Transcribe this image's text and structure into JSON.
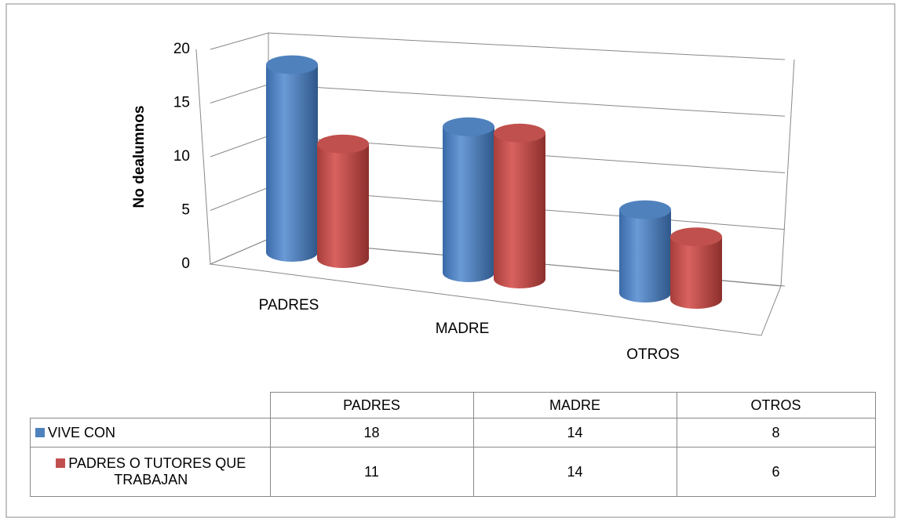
{
  "chart_data": {
    "type": "bar3d",
    "ylabel": "No dealumnos",
    "categories": [
      "PADRES",
      "MADRE",
      "OTROS"
    ],
    "series": [
      {
        "name": "VIVE CON",
        "color": "#4f81bd",
        "values": [
          18,
          14,
          8
        ]
      },
      {
        "name": "PADRES O TUTORES QUE TRABAJAN",
        "color": "#c0504d",
        "values": [
          11,
          14,
          6
        ]
      }
    ],
    "ylim": [
      0,
      20
    ],
    "yticks": [
      0,
      5,
      10,
      15,
      20
    ],
    "grid": true,
    "data_table": true
  }
}
